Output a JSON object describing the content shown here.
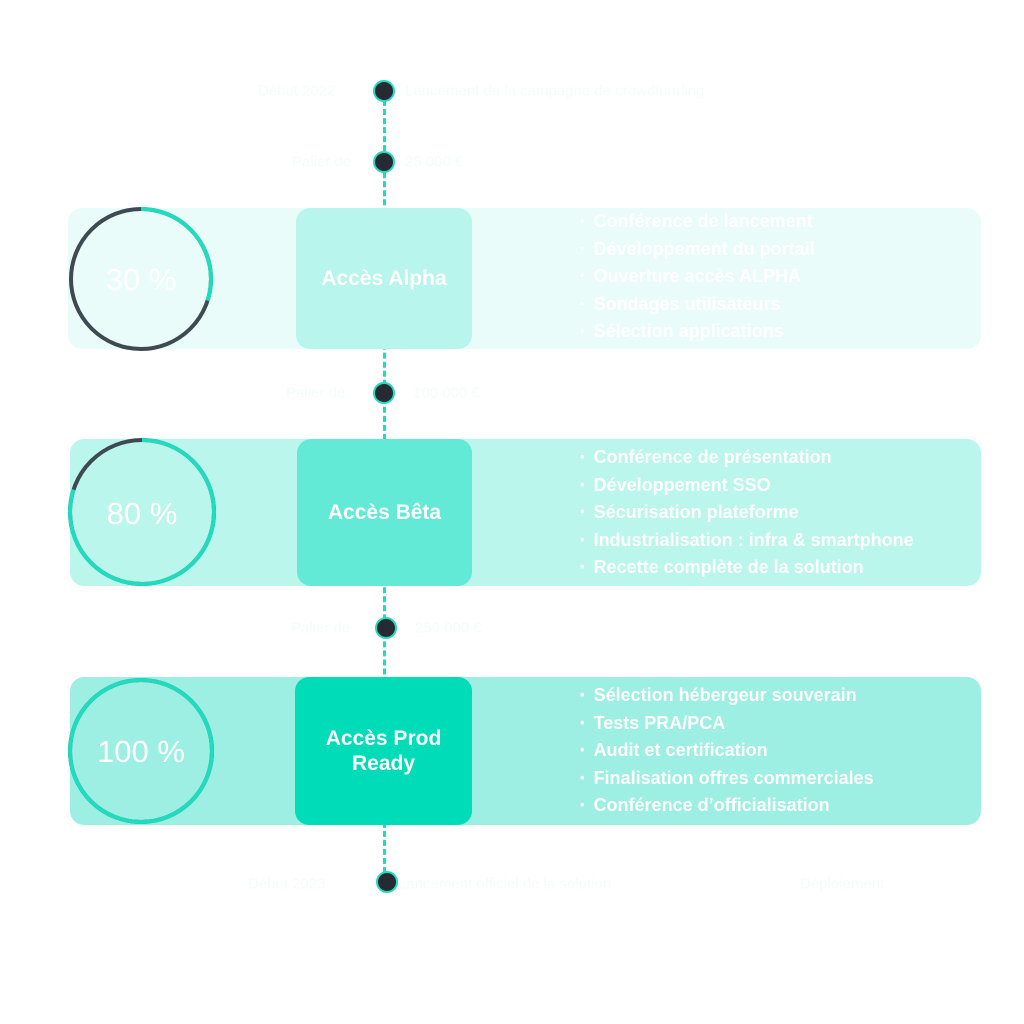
{
  "colors": {
    "accent": "#1fdcbf",
    "dot": "#262b33",
    "track": "#3d4a52"
  },
  "milestones": [
    {
      "left": "Début 2022",
      "right": "Lancement de la campagne de crowdfunding"
    },
    {
      "left": "Palier de",
      "right": "25 000 €"
    },
    {
      "left": "Palier de",
      "right": "100 000 €"
    },
    {
      "left": "Palier de",
      "right": "250 000 €"
    },
    {
      "left": "Début 2023",
      "right": "Lancement officiel de la solution",
      "extra": "Déploiement"
    }
  ],
  "phases": [
    {
      "title": "Accès Alpha",
      "progress": 30,
      "progress_label": "30 %",
      "card_color": "#eafcf9",
      "box_color": "#b8f5ec",
      "items": [
        "Conférence de lancement",
        "Développement du portail",
        "Ouverture accès ALPHA",
        "Sondages utilisateurs",
        "Sélection applications"
      ]
    },
    {
      "title": "Accès Bêta",
      "progress": 80,
      "progress_label": "80 %",
      "card_color": "#bbf6ed",
      "box_color": "#62ead6",
      "items": [
        "Conférence de présentation",
        "Développement SSO",
        "Sécurisation plateforme",
        "Industrialisation : infra & smartphone",
        "Recette complète de la solution"
      ]
    },
    {
      "title": "Accès Prod Ready",
      "progress": 100,
      "progress_label": "100 %",
      "card_color": "#9cefe2",
      "box_color": "#00dcb8",
      "items": [
        "Sélection hébergeur souverain",
        "Tests PRA/PCA",
        "Audit et certification",
        "Finalisation offres commerciales",
        "Conférence d’officialisation"
      ]
    }
  ]
}
